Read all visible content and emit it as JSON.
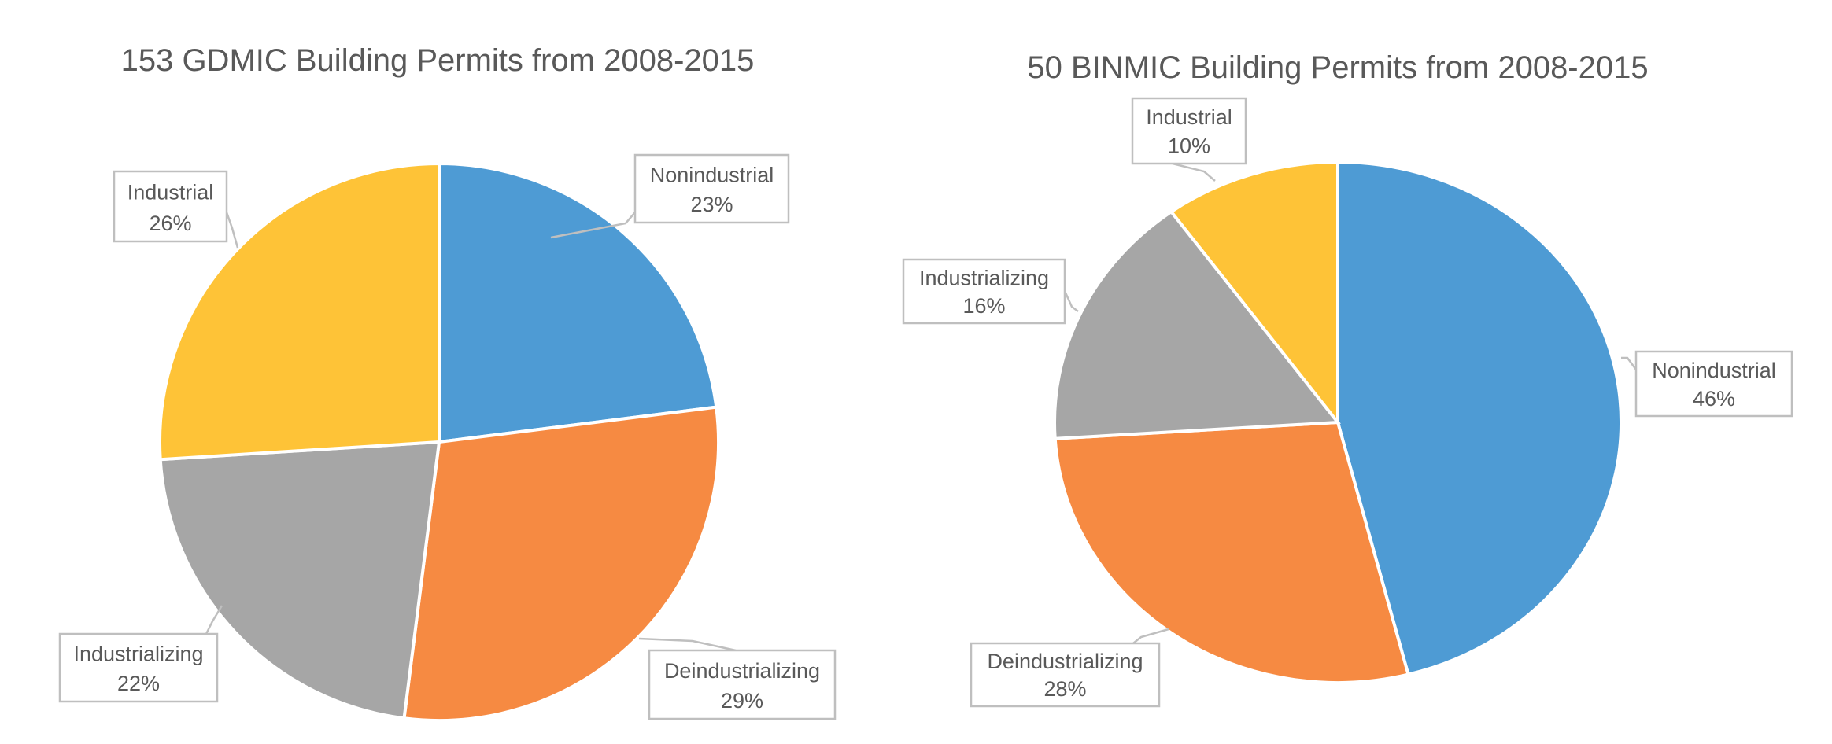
{
  "chart_data": [
    {
      "type": "pie",
      "title": "153 GDMIC Building Permits from 2008-2015",
      "categories": [
        "Nonindustrial",
        "Deindustrializing",
        "Industrializing",
        "Industrial"
      ],
      "values": [
        23,
        29,
        22,
        26
      ],
      "labels": [
        "23%",
        "29%",
        "22%",
        "26%"
      ],
      "colors": [
        "#4E9BD4",
        "#F68A42",
        "#A6A6A6",
        "#FEC337"
      ],
      "legend": "none"
    },
    {
      "type": "pie",
      "title": "50 BINMIC Building Permits from 2008-2015",
      "categories": [
        "Nonindustrial",
        "Deindustrializing",
        "Industrializing",
        "Industrial"
      ],
      "values": [
        46,
        28,
        16,
        10
      ],
      "labels": [
        "46%",
        "28%",
        "16%",
        "10%"
      ],
      "colors": [
        "#4E9BD4",
        "#F68A42",
        "#A6A6A6",
        "#FEC337"
      ],
      "legend": "none"
    }
  ]
}
